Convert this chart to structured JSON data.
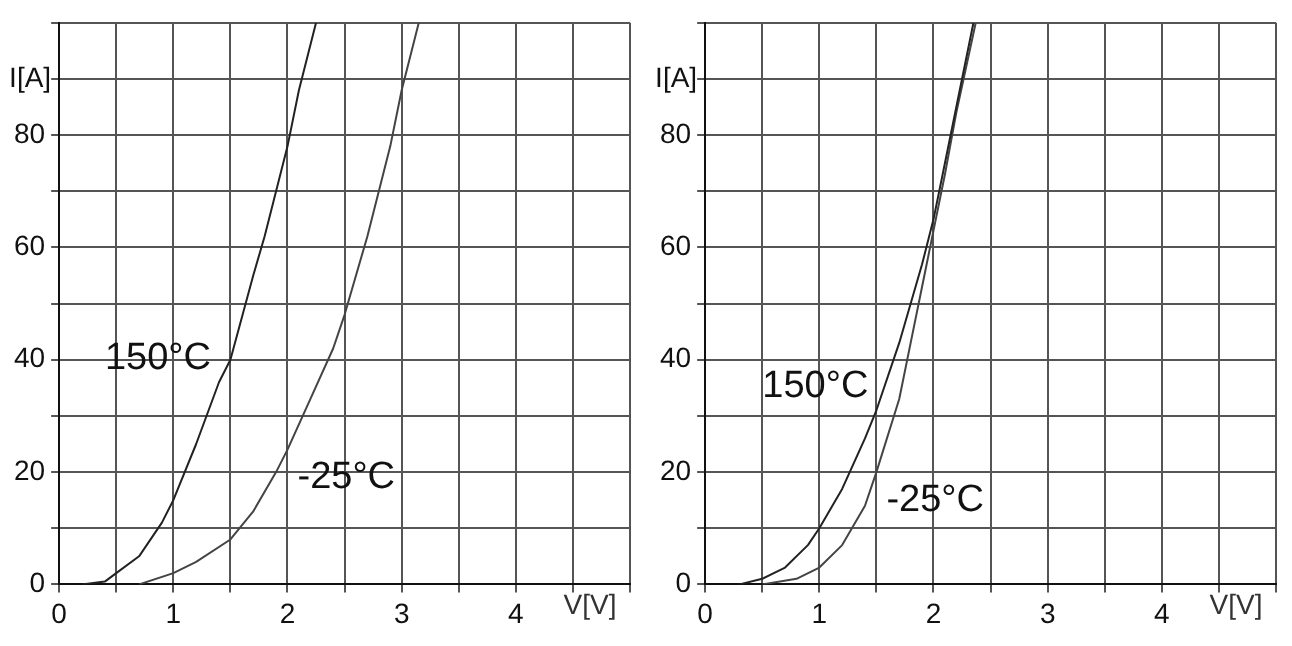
{
  "chart_data": [
    {
      "type": "line",
      "xlabel": "V[V]",
      "ylabel": "I[A]",
      "xlim": [
        0,
        5
      ],
      "ylim": [
        0,
        100
      ],
      "xticks": [
        0,
        {
          "value": 0.5,
          "label": null
        },
        1,
        {
          "value": 1.5,
          "label": null
        },
        2,
        {
          "value": 2.5,
          "label": null
        },
        3,
        {
          "value": 3.5,
          "label": null
        },
        4,
        {
          "value": 4.5,
          "label": null
        },
        {
          "value": 5,
          "label": null
        }
      ],
      "yticks": [
        0,
        {
          "value": 10,
          "label": null
        },
        20,
        {
          "value": 30,
          "label": null
        },
        40,
        {
          "value": 50,
          "label": null
        },
        60,
        {
          "value": 70,
          "label": null
        },
        80,
        {
          "value": 90,
          "label": null
        },
        {
          "value": 100,
          "label": null
        }
      ],
      "grid": true,
      "legend": false,
      "marker": "none",
      "line_style": "solid",
      "series": [
        {
          "name": "150°C",
          "color": "#222222",
          "x": [
            0.2,
            0.4,
            0.5,
            0.7,
            0.9,
            1.0,
            1.2,
            1.4,
            1.5,
            1.7,
            1.8,
            2.0,
            2.1,
            2.25
          ],
          "values": [
            0,
            0.5,
            2,
            5,
            11,
            15,
            25,
            36,
            40,
            55,
            62,
            78,
            88,
            100
          ]
        },
        {
          "name": "-25°C",
          "color": "#444444",
          "x": [
            0.7,
            1.0,
            1.2,
            1.5,
            1.7,
            1.9,
            2.0,
            2.2,
            2.4,
            2.5,
            2.7,
            2.9,
            3.0,
            3.15
          ],
          "values": [
            0,
            2,
            4,
            8,
            13,
            20,
            24,
            33,
            42,
            48,
            62,
            78,
            88,
            100
          ]
        }
      ]
    },
    {
      "type": "line",
      "xlabel": "V[V]",
      "ylabel": "I[A]",
      "xlim": [
        0,
        5
      ],
      "ylim": [
        0,
        100
      ],
      "xticks": [
        0,
        {
          "value": 0.5,
          "label": null
        },
        1,
        {
          "value": 1.5,
          "label": null
        },
        2,
        {
          "value": 2.5,
          "label": null
        },
        3,
        {
          "value": 3.5,
          "label": null
        },
        4,
        {
          "value": 4.5,
          "label": null
        },
        {
          "value": 5,
          "label": null
        }
      ],
      "yticks": [
        0,
        {
          "value": 10,
          "label": null
        },
        20,
        {
          "value": 30,
          "label": null
        },
        40,
        {
          "value": 50,
          "label": null
        },
        60,
        {
          "value": 70,
          "label": null
        },
        80,
        {
          "value": 90,
          "label": null
        },
        {
          "value": 100,
          "label": null
        }
      ],
      "grid": true,
      "legend": false,
      "marker": "none",
      "line_style": "solid",
      "series": [
        {
          "name": "150°C",
          "color": "#222222",
          "x": [
            0.3,
            0.5,
            0.7,
            0.9,
            1.0,
            1.2,
            1.4,
            1.5,
            1.7,
            1.9,
            2.0,
            2.1,
            2.2,
            2.35
          ],
          "values": [
            0,
            1,
            3,
            7,
            10,
            17,
            26,
            31,
            43,
            57,
            65,
            75,
            85,
            100
          ]
        },
        {
          "name": "-25°C",
          "color": "#444444",
          "x": [
            0.5,
            0.8,
            1.0,
            1.2,
            1.4,
            1.5,
            1.7,
            1.8,
            1.9,
            2.0,
            2.1,
            2.2,
            2.37
          ],
          "values": [
            0,
            1,
            3,
            7,
            14,
            20,
            33,
            43,
            53,
            63,
            73,
            84,
            100
          ]
        }
      ]
    }
  ]
}
